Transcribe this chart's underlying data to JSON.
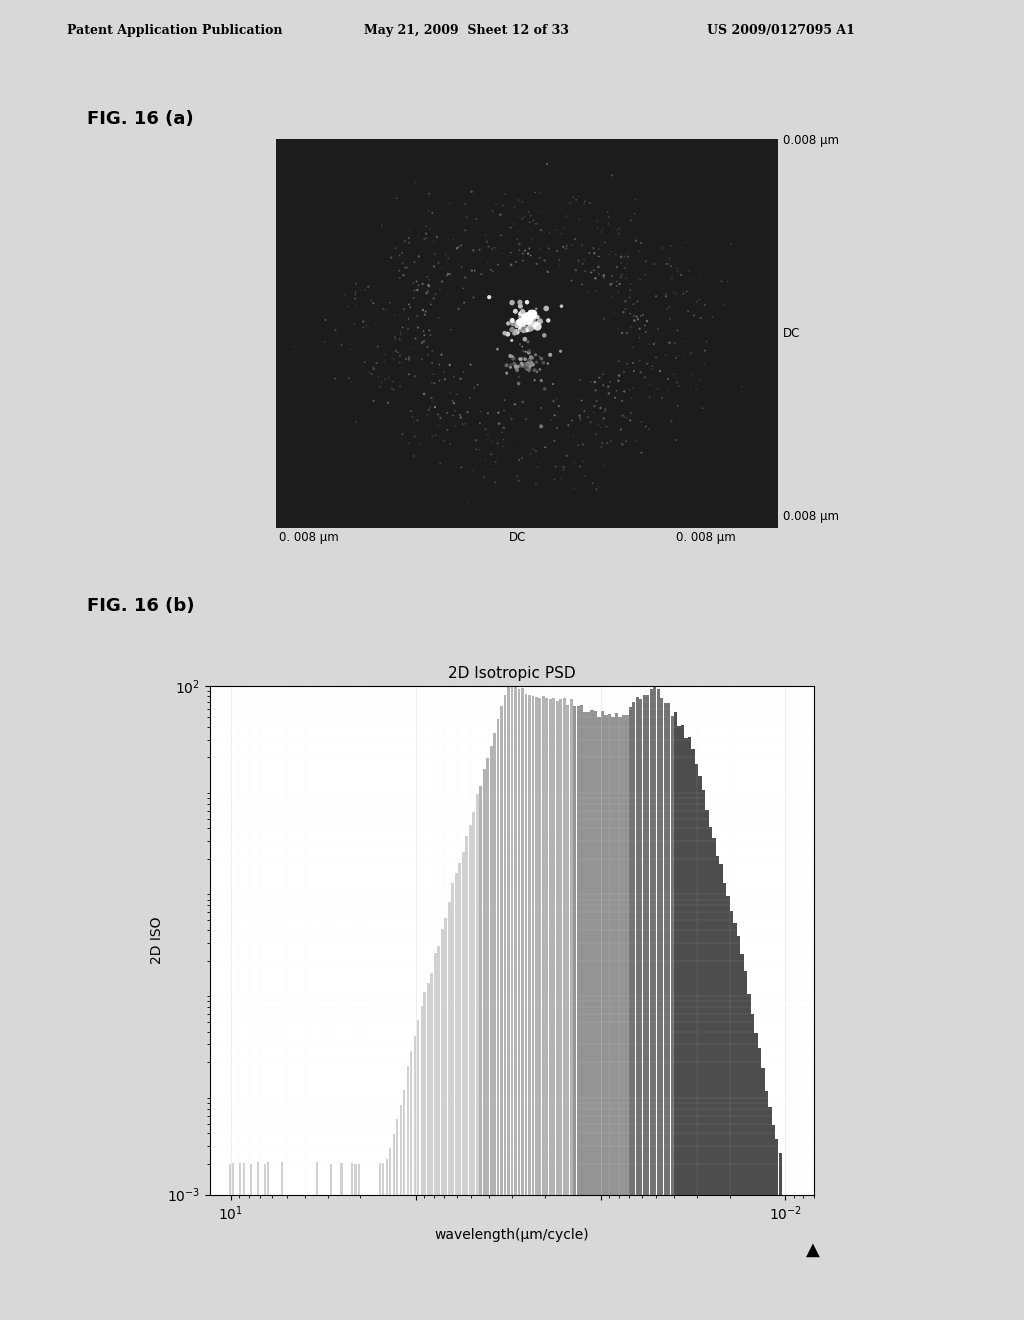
{
  "header_left": "Patent Application Publication",
  "header_center": "May 21, 2009  Sheet 12 of 33",
  "header_right": "US 2009/0127095 A1",
  "fig_a_label": "FIG. 16 (a)",
  "fig_b_label": "FIG. 16 (b)",
  "label_top_right": "0.008 μm",
  "label_mid_right": "DC",
  "label_bot_right": "0.008 μm",
  "label_bot_left": "0. 008 μm",
  "label_bot_dc": "DC",
  "label_bot_r2": "0. 008 μm",
  "plot_title": "2D Isotropic PSD",
  "plot_xlabel": "wavelength(μm/cycle)",
  "plot_ylabel": "2D ISO",
  "page_bg": "#d8d8d8"
}
